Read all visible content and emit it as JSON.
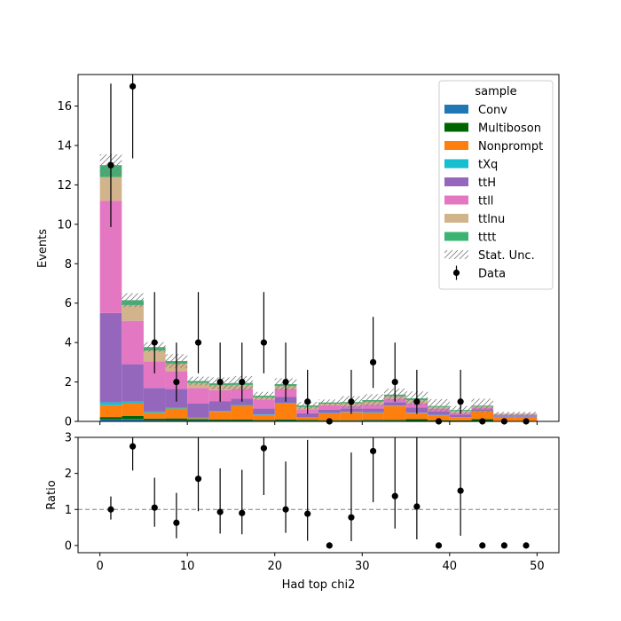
{
  "chart_data": [
    {
      "type": "bar",
      "stacked": true,
      "xlabel": "",
      "ylabel": "Events",
      "xlim": [
        -2.5,
        52.5
      ],
      "ylim": [
        0,
        17.6
      ],
      "yticks": [
        0,
        2,
        4,
        6,
        8,
        10,
        12,
        14,
        16
      ],
      "bin_edges": [
        0,
        2.5,
        5,
        7.5,
        10,
        12.5,
        15,
        17.5,
        20,
        22.5,
        25,
        27.5,
        30,
        32.5,
        35,
        37.5,
        40,
        42.5,
        45,
        47.5,
        50
      ],
      "legend": {
        "title": "sample",
        "position": "upper right"
      },
      "series": [
        {
          "name": "Conv",
          "color": "#1f77b4",
          "values": [
            0.1,
            0.12,
            0.06,
            0.05,
            0.05,
            0.04,
            0.04,
            0.03,
            0.04,
            0.03,
            0.03,
            0.03,
            0.04,
            0.03,
            0.02,
            0.02,
            0.02,
            0.02,
            0.01,
            0.01
          ]
        },
        {
          "name": "Multiboson",
          "color": "#006400",
          "values": [
            0.12,
            0.15,
            0.08,
            0.1,
            0.06,
            0.05,
            0.05,
            0.04,
            0.06,
            0.05,
            0.03,
            0.03,
            0.04,
            0.05,
            0.1,
            0.04,
            0.03,
            0.1,
            0.02,
            0.02
          ]
        },
        {
          "name": "Nonprompt",
          "color": "#ff7f0e",
          "values": [
            0.6,
            0.65,
            0.3,
            0.5,
            0.05,
            0.4,
            0.7,
            0.25,
            0.8,
            0.1,
            0.35,
            0.4,
            0.35,
            0.7,
            0.3,
            0.25,
            0.15,
            0.4,
            0.2,
            0.2
          ]
        },
        {
          "name": "tXq",
          "color": "#17becf",
          "values": [
            0.15,
            0.08,
            0.06,
            0.05,
            0.04,
            0.04,
            0.04,
            0.03,
            0.04,
            0.03,
            0.02,
            0.02,
            0.03,
            0.02,
            0.02,
            0.02,
            0.02,
            0.02,
            0.01,
            0.01
          ]
        },
        {
          "name": "ttH",
          "color": "#9467bd",
          "values": [
            4.53,
            1.9,
            1.2,
            0.95,
            0.7,
            0.5,
            0.32,
            0.3,
            0.3,
            0.2,
            0.17,
            0.18,
            0.19,
            0.18,
            0.26,
            0.18,
            0.12,
            0.08,
            0.05,
            0.05
          ]
        },
        {
          "name": "ttll",
          "color": "#e377c2",
          "values": [
            5.7,
            2.2,
            1.35,
            0.9,
            0.8,
            0.55,
            0.5,
            0.45,
            0.4,
            0.2,
            0.22,
            0.14,
            0.2,
            0.18,
            0.22,
            0.14,
            0.1,
            0.08,
            0.05,
            0.05
          ]
        },
        {
          "name": "ttlnu",
          "color": "#d2b48c",
          "values": [
            1.2,
            0.8,
            0.55,
            0.38,
            0.25,
            0.25,
            0.2,
            0.12,
            0.15,
            0.12,
            0.08,
            0.12,
            0.15,
            0.12,
            0.15,
            0.08,
            0.09,
            0.05,
            0.03,
            0.03
          ]
        },
        {
          "name": "tttt",
          "color": "#3cb371",
          "values": [
            0.6,
            0.25,
            0.17,
            0.13,
            0.1,
            0.1,
            0.1,
            0.08,
            0.1,
            0.08,
            0.06,
            0.06,
            0.08,
            0.08,
            0.1,
            0.05,
            0.05,
            0.05,
            0.02,
            0.02
          ]
        }
      ],
      "stat_unc": {
        "name": "Stat. Unc.",
        "half_width": [
          0.55,
          0.35,
          0.25,
          0.35,
          0.22,
          0.3,
          0.35,
          0.2,
          0.3,
          0.18,
          0.15,
          0.3,
          0.3,
          0.3,
          0.35,
          0.35,
          0.2,
          0.35,
          0.1,
          0.1
        ]
      },
      "data": {
        "name": "Data",
        "x": [
          1.25,
          3.75,
          6.25,
          8.75,
          11.25,
          13.75,
          16.25,
          18.75,
          21.25,
          23.75,
          26.25,
          28.75,
          31.25,
          33.75,
          36.25,
          38.75,
          41.25,
          43.75,
          46.25,
          48.75
        ],
        "y": [
          13,
          17,
          4,
          2,
          4,
          2,
          2,
          4,
          2,
          1,
          0,
          1,
          3,
          2,
          1,
          0,
          1,
          0,
          0,
          0
        ]
      }
    },
    {
      "type": "scatter",
      "xlabel": "Had top chi2",
      "ylabel": "Ratio",
      "xlim": [
        -2.5,
        52.5
      ],
      "ylim": [
        -0.2,
        3
      ],
      "xticks": [
        0,
        10,
        20,
        30,
        40,
        50
      ],
      "yticks": [
        0,
        1,
        2,
        3
      ],
      "reference_line": 1,
      "points": [
        {
          "x": 1.25,
          "y": 1.0,
          "lo": 0.72,
          "hi": 1.36
        },
        {
          "x": 3.75,
          "y": 2.75,
          "lo": 2.08,
          "hi": 3.0
        },
        {
          "x": 6.25,
          "y": 1.05,
          "lo": 0.52,
          "hi": 1.88
        },
        {
          "x": 8.75,
          "y": 0.63,
          "lo": 0.2,
          "hi": 1.46
        },
        {
          "x": 11.25,
          "y": 1.85,
          "lo": 0.95,
          "hi": 3.0
        },
        {
          "x": 13.75,
          "y": 0.93,
          "lo": 0.33,
          "hi": 2.14
        },
        {
          "x": 16.25,
          "y": 0.9,
          "lo": 0.31,
          "hi": 2.1
        },
        {
          "x": 18.75,
          "y": 2.7,
          "lo": 1.4,
          "hi": 3.0
        },
        {
          "x": 21.25,
          "y": 1.0,
          "lo": 0.35,
          "hi": 2.33
        },
        {
          "x": 23.75,
          "y": 0.88,
          "lo": 0.13,
          "hi": 2.93
        },
        {
          "x": 26.25,
          "y": 0
        },
        {
          "x": 28.75,
          "y": 0.78,
          "lo": 0.12,
          "hi": 2.58
        },
        {
          "x": 31.25,
          "y": 2.62,
          "lo": 1.2,
          "hi": 3.0
        },
        {
          "x": 33.75,
          "y": 1.37,
          "lo": 0.47,
          "hi": 3.0
        },
        {
          "x": 36.25,
          "y": 1.08,
          "lo": 0.17,
          "hi": 3.0
        },
        {
          "x": 38.75,
          "y": 0
        },
        {
          "x": 41.25,
          "y": 1.52,
          "lo": 0.27,
          "hi": 3.0
        },
        {
          "x": 43.75,
          "y": 0
        },
        {
          "x": 46.25,
          "y": 0
        },
        {
          "x": 48.75,
          "y": 0
        }
      ]
    }
  ]
}
